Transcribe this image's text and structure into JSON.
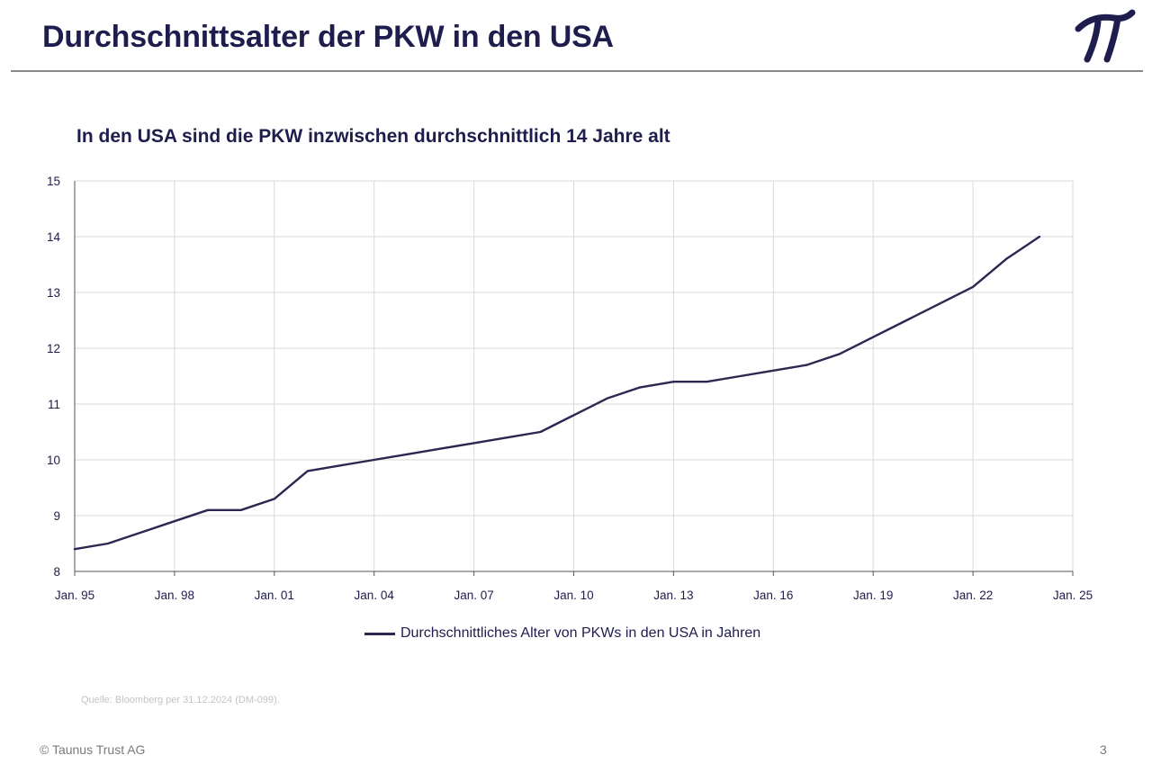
{
  "header": {
    "title": "Durchschnittsalter der PKW in den USA",
    "logo": {
      "icon": "pi-logo-icon",
      "color": "#1f1d4d"
    }
  },
  "colors": {
    "primary": "#1f1d4d",
    "line": "#2a2850",
    "grid": "#d9d9d9",
    "source": "#c4c4c4"
  },
  "chart_data": {
    "type": "line",
    "title": "In den USA sind die PKW inzwischen durchschnittlich 14 Jahre alt",
    "xlabel": "",
    "ylabel": "",
    "xlim": [
      1995,
      2025
    ],
    "ylim": [
      8,
      15
    ],
    "x_ticks": [
      1995,
      1998,
      2001,
      2004,
      2007,
      2010,
      2013,
      2016,
      2019,
      2022,
      2025
    ],
    "x_tick_labels": [
      "Jan. 95",
      "Jan. 98",
      "Jan. 01",
      "Jan. 04",
      "Jan. 07",
      "Jan. 10",
      "Jan. 13",
      "Jan. 16",
      "Jan. 19",
      "Jan. 22",
      "Jan. 25"
    ],
    "y_ticks": [
      8,
      9,
      10,
      11,
      12,
      13,
      14,
      15
    ],
    "y_tick_labels": [
      "8",
      "9",
      "10",
      "11",
      "12",
      "13",
      "14",
      "15"
    ],
    "grid": true,
    "legend_position": "bottom",
    "series": [
      {
        "name": "Durchschnittliches Alter von PKWs in den USA in Jahren",
        "color": "#2a2850",
        "x": [
          1995,
          1996,
          1997,
          1998,
          1999,
          2000,
          2001,
          2002,
          2003,
          2004,
          2005,
          2006,
          2007,
          2008,
          2009,
          2010,
          2011,
          2012,
          2013,
          2014,
          2015,
          2016,
          2017,
          2018,
          2019,
          2020,
          2021,
          2022,
          2023,
          2024
        ],
        "y": [
          8.4,
          8.5,
          8.7,
          8.9,
          9.1,
          9.1,
          9.3,
          9.8,
          9.9,
          10.0,
          10.1,
          10.2,
          10.3,
          10.4,
          10.5,
          10.8,
          11.1,
          11.3,
          11.4,
          11.4,
          11.5,
          11.6,
          11.7,
          11.9,
          12.2,
          12.5,
          12.8,
          13.1,
          13.6,
          14.0
        ]
      }
    ]
  },
  "footer": {
    "source": "Quelle: Bloomberg per 31.12.2024 (DM-099).",
    "copyright": "© Taunus Trust AG",
    "page_number": "3"
  }
}
